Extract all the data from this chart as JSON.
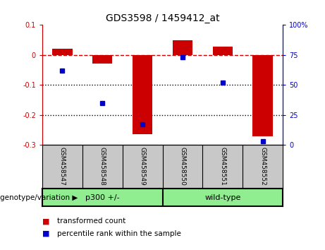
{
  "title": "GDS3598 / 1459412_at",
  "samples": [
    "GSM458547",
    "GSM458548",
    "GSM458549",
    "GSM458550",
    "GSM458551",
    "GSM458552"
  ],
  "red_values": [
    0.02,
    -0.028,
    -0.265,
    0.05,
    0.028,
    -0.27
  ],
  "blue_values_pct": [
    62,
    35,
    17,
    73,
    52,
    3
  ],
  "ylim_left": [
    -0.3,
    0.1
  ],
  "ylim_right": [
    0,
    100
  ],
  "yticks_left": [
    0.1,
    0.0,
    -0.1,
    -0.2,
    -0.3
  ],
  "yticks_right": [
    100,
    75,
    50,
    25,
    0
  ],
  "group_bg_color": "#90EE90",
  "sample_bg_color": "#C8C8C8",
  "red_color": "#CC0000",
  "blue_color": "#0000CC",
  "dashed_line_color": "#CC0000",
  "dotted_line_color": "#000000",
  "legend_red_label": "transformed count",
  "legend_blue_label": "percentile rank within the sample",
  "genotype_label": "genotype/variation",
  "plot_bg_color": "#FFFFFF",
  "axis_color_left": "#CC0000",
  "axis_color_right": "#0000CC",
  "bar_width": 0.5,
  "blue_marker_size": 5,
  "title_fontsize": 10,
  "tick_fontsize": 7,
  "sample_fontsize": 6.5,
  "group_fontsize": 8,
  "legend_fontsize": 7.5,
  "genotype_fontsize": 7.5
}
